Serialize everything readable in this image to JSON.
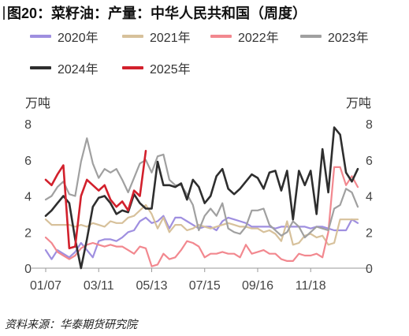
{
  "title": "图20：菜籽油：产量：中华人民共和国（周度）",
  "source": "资料来源：华泰期货研究院",
  "chart_data": {
    "type": "line",
    "ylabel_left": "万吨",
    "ylabel_right": "万吨",
    "ylim": [
      0,
      8
    ],
    "yticks": [
      0,
      2,
      4,
      6,
      8
    ],
    "xtick_labels": [
      "01/07",
      "03/11",
      "05/13",
      "07/15",
      "09/16",
      "11/18"
    ],
    "xtick_weeks": [
      1,
      10,
      19,
      28,
      37,
      46
    ],
    "grid": false,
    "legend_position": "top",
    "series": [
      {
        "name": "2020年",
        "color": "#9f8fe0",
        "values": [
          1.0,
          0.5,
          1.0,
          0.8,
          0.6,
          0.9,
          1.4,
          1.0,
          0.6,
          1.5,
          1.6,
          1.6,
          1.5,
          1.7,
          2.0,
          2.1,
          2.6,
          2.8,
          2.5,
          2.6,
          2.9,
          2.2,
          2.8,
          2.8,
          2.6,
          2.4,
          2.2,
          2.3,
          2.3,
          2.1,
          2.6,
          2.8,
          2.7,
          2.6,
          2.5,
          2.3,
          2.3,
          2.3,
          2.3,
          2.2,
          2.3,
          2.3,
          2.3,
          2.3,
          2.3,
          2.2,
          2.3,
          2.3,
          2.2,
          2.1,
          2.1,
          2.1,
          2.7,
          2.5
        ]
      },
      {
        "name": "2021年",
        "color": "#d7c19b",
        "values": [
          2.7,
          2.4,
          2.4,
          2.4,
          2.4,
          2.3,
          2.4,
          2.3,
          2.5,
          2.4,
          2.3,
          2.6,
          2.5,
          2.5,
          2.8,
          2.9,
          3.2,
          3.5,
          3.0,
          2.2,
          2.8,
          2.0,
          2.4,
          2.4,
          2.1,
          2.2,
          2.4,
          2.3,
          2.2,
          2.3,
          2.4,
          2.5,
          2.4,
          2.3,
          2.3,
          2.2,
          2.2,
          2.0,
          2.1,
          1.9,
          1.5,
          2.6,
          1.3,
          1.4,
          1.8,
          1.9,
          1.7,
          1.8,
          1.3,
          1.4,
          2.7,
          2.7,
          2.7,
          2.7
        ]
      },
      {
        "name": "2022年",
        "color": "#f2888f",
        "values": [
          1.7,
          1.4,
          0.9,
          0.7,
          0.5,
          0.7,
          1.1,
          1.3,
          1.4,
          1.3,
          1.2,
          1.3,
          1.2,
          1.2,
          1.0,
          0.8,
          1.2,
          1.1,
          0.1,
          0.2,
          0.8,
          0.5,
          0.6,
          1.0,
          1.5,
          1.4,
          1.2,
          0.6,
          0.8,
          0.8,
          0.9,
          0.8,
          0.8,
          0.6,
          1.3,
          0.8,
          0.9,
          1.0,
          0.8,
          0.8,
          0.5,
          0.4,
          0.4,
          0.8,
          0.7,
          0.7,
          0.8,
          0.6,
          2.0,
          5.6,
          5.6,
          4.6,
          5.1,
          4.5
        ]
      },
      {
        "name": "2023年",
        "color": "#a0a0a0",
        "values": [
          3.8,
          4.0,
          4.5,
          4.8,
          4.1,
          4.0,
          5.9,
          7.2,
          5.8,
          5.0,
          5.5,
          5.3,
          5.5,
          4.9,
          4.2,
          5.0,
          5.8,
          6.0,
          5.3,
          6.2,
          6.3,
          4.9,
          4.6,
          4.6,
          4.1,
          3.5,
          2.1,
          2.9,
          3.3,
          2.9,
          3.6,
          2.2,
          2.0,
          1.9,
          2.3,
          3.2,
          3.2,
          3.3,
          2.4,
          2.1,
          1.8,
          2.0,
          2.6,
          2.3,
          1.7,
          2.0,
          2.3,
          2.2,
          2.1,
          3.3,
          3.5,
          4.4,
          4.2,
          3.4
        ]
      },
      {
        "name": "2024年",
        "color": "#2e2e2e",
        "values": [
          2.9,
          3.2,
          3.6,
          4.0,
          3.6,
          1.6,
          0.0,
          1.6,
          3.4,
          3.9,
          4.0,
          3.6,
          3.0,
          3.2,
          3.1,
          4.1,
          3.6,
          3.3,
          3.3,
          5.9,
          4.6,
          4.6,
          4.5,
          4.7,
          3.8,
          4.9,
          4.5,
          3.6,
          4.0,
          5.1,
          5.5,
          4.4,
          4.1,
          4.4,
          4.8,
          5.2,
          5.0,
          4.4,
          5.3,
          5.4,
          4.3,
          5.4,
          2.7,
          5.4,
          4.6,
          5.4,
          3.0,
          6.6,
          4.2,
          7.8,
          7.4,
          5.3,
          4.8,
          5.5
        ]
      },
      {
        "name": "2025年",
        "color": "#d2202c",
        "values": [
          4.9,
          4.6,
          5.2,
          5.7,
          1.1,
          1.2,
          4.0,
          4.9,
          4.6,
          4.3,
          4.6,
          3.8,
          3.4,
          3.7,
          3.2,
          4.3,
          4.0,
          6.5
        ]
      }
    ]
  }
}
